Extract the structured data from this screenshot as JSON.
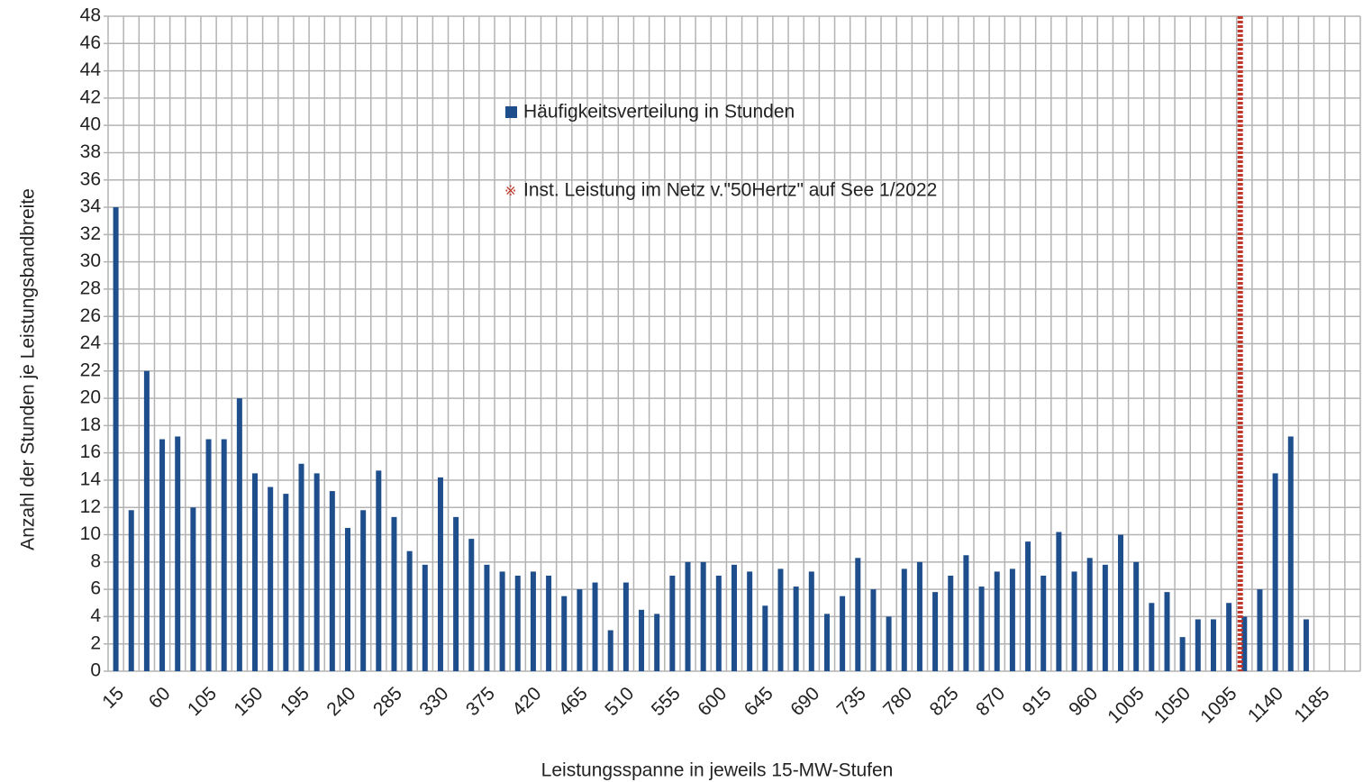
{
  "chart_data": {
    "type": "bar",
    "x_label": "Leistungsspanne in jeweils 15-MW-Stufen",
    "y_label": "Anzahl der Stunden je Leistungsbandbreite",
    "categories": [
      15,
      null,
      null,
      60,
      null,
      null,
      105,
      null,
      null,
      150,
      null,
      null,
      195,
      null,
      null,
      240,
      null,
      null,
      285,
      null,
      null,
      330,
      null,
      null,
      375,
      null,
      null,
      420,
      null,
      null,
      465,
      null,
      null,
      510,
      null,
      null,
      555,
      null,
      null,
      600,
      null,
      null,
      645,
      null,
      null,
      690,
      null,
      null,
      735,
      null,
      null,
      780,
      null,
      null,
      825,
      null,
      null,
      870,
      null,
      null,
      915,
      null,
      null,
      960,
      null,
      null,
      1005,
      null,
      null,
      1050,
      null,
      null,
      1095,
      null,
      null,
      1140,
      null,
      null,
      1185,
      null,
      null
    ],
    "series": [
      {
        "name": "Häufigkeitsverteilung in Stunden",
        "color": "#1f4e8c",
        "values": [
          34,
          11.8,
          22,
          17,
          17.2,
          12,
          17,
          17,
          20,
          14.5,
          13.5,
          13,
          15.2,
          14.5,
          13.2,
          10.5,
          11.8,
          14.7,
          11.3,
          8.8,
          7.8,
          14.2,
          11.3,
          9.7,
          7.8,
          7.3,
          7,
          7.3,
          7,
          5.5,
          6,
          6.5,
          3,
          6.5,
          4.5,
          4.2,
          7,
          8,
          8,
          7,
          7.8,
          7.3,
          4.8,
          7.5,
          6.2,
          7.3,
          4.2,
          5.5,
          8.3,
          6,
          4,
          7.5,
          8,
          5.8,
          7,
          8.5,
          6.2,
          7.3,
          7.5,
          9.5,
          7,
          10.2,
          7.3,
          8.3,
          7.8,
          10,
          8,
          5,
          5.8,
          2.5,
          3.8,
          3.8,
          5,
          4,
          6,
          14.5,
          17.2,
          3.8,
          null,
          null,
          null
        ]
      }
    ],
    "reference_line": {
      "name": "Inst. Leistung im Netz v.\"50Hertz\" auf See 1/2022",
      "value": 1106,
      "color": "#c0392b"
    },
    "ylim": [
      0,
      48
    ],
    "yticks": [
      0,
      2,
      4,
      6,
      8,
      10,
      12,
      14,
      16,
      18,
      20,
      22,
      24,
      26,
      28,
      30,
      32,
      34,
      36,
      38,
      40,
      42,
      44,
      46,
      48
    ],
    "grid": true
  }
}
